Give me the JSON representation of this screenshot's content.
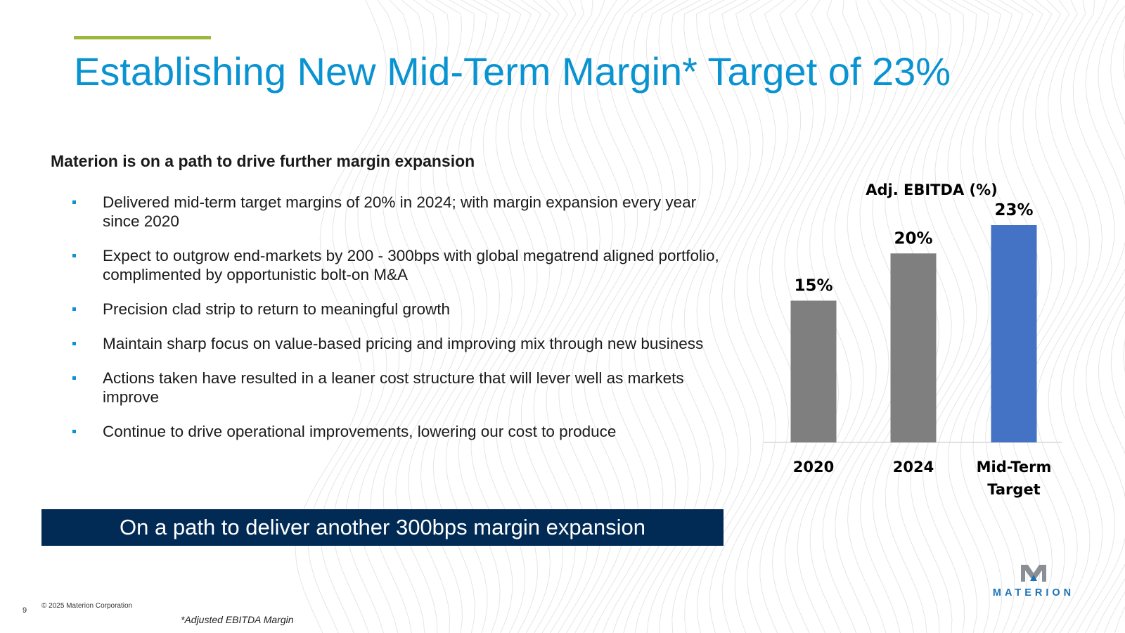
{
  "slide": {
    "title": "Establishing New Mid-Term Margin* Target of 23%",
    "subtitle": "Materion is on a path to drive further margin expansion",
    "bullets": [
      "Delivered mid-term target margins of 20% in 2024; with margin expansion every year since 2020",
      "Expect to outgrow end-markets by 200 - 300bps with global megatrend aligned portfolio, complimented by opportunistic bolt-on M&A",
      "Precision clad strip to return to meaningful growth",
      "Maintain sharp focus on value-based pricing and improving mix through new business",
      "Actions taken have resulted in a leaner cost structure that will lever well as markets improve",
      "Continue to drive operational improvements, lowering our cost to produce"
    ],
    "banner": "On a path to deliver another 300bps margin expansion",
    "footnote": "*Adjusted EBITDA Margin",
    "copyright": "© 2025 Materion Corporation",
    "page_number": "9",
    "logo_text": "MATERION"
  },
  "colors": {
    "title": "#0a93d1",
    "accent_line": "#9bb83a",
    "banner_bg": "#012b55",
    "bar_gray": "#7f7f7f",
    "bar_blue": "#4472c4",
    "logo_blue": "#1a73b8"
  },
  "chart_data": {
    "type": "bar",
    "title": "Adj. EBITDA (%)",
    "categories": [
      "2020",
      "2024",
      "Mid-Term Target"
    ],
    "category_lines": [
      [
        "2020"
      ],
      [
        "2024"
      ],
      [
        "Mid-Term",
        "Target"
      ]
    ],
    "values": [
      15,
      20,
      23
    ],
    "data_labels": [
      "15%",
      "20%",
      "23%"
    ],
    "bar_colors": [
      "#7f7f7f",
      "#7f7f7f",
      "#4472c4"
    ],
    "xlabel": "",
    "ylabel": "",
    "ylim": [
      0,
      23
    ],
    "grid": false,
    "legend": "none"
  }
}
